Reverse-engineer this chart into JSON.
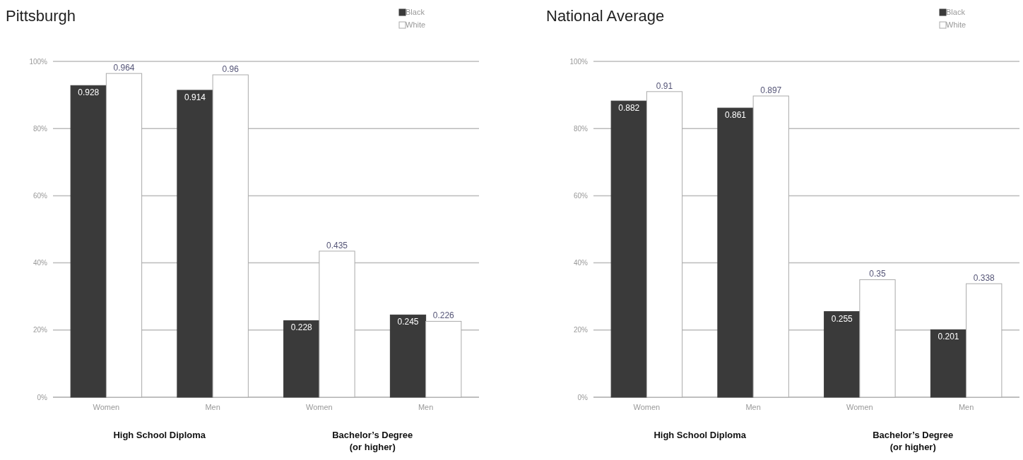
{
  "chart_data": [
    {
      "type": "bar",
      "title": "Pittsburgh",
      "categories": [
        "Women",
        "Men",
        "Women",
        "Men"
      ],
      "series": [
        {
          "name": "Black",
          "color": "#3a3a3a",
          "values": [
            0.928,
            0.914,
            0.228,
            0.245
          ]
        },
        {
          "name": "White",
          "color": "#ffffff",
          "values": [
            0.964,
            0.96,
            0.435,
            0.226
          ]
        }
      ],
      "ylim": [
        0,
        1
      ],
      "yticks": [
        {
          "value": 0,
          "label": "0%"
        },
        {
          "value": 0.2,
          "label": "20%"
        },
        {
          "value": 0.4,
          "label": "40%"
        },
        {
          "value": 0.6,
          "label": "60%"
        },
        {
          "value": 0.8,
          "label": "80%"
        },
        {
          "value": 1,
          "label": "100%"
        }
      ],
      "grid": "y",
      "legend": "top right",
      "data_labels": true,
      "annotations": [
        "High School Diploma",
        "Bachelor’s Degree (or higher)"
      ]
    },
    {
      "type": "bar",
      "title": "National Average",
      "categories": [
        "Women",
        "Men",
        "Women",
        "Men"
      ],
      "series": [
        {
          "name": "Black",
          "color": "#3a3a3a",
          "values": [
            0.882,
            0.861,
            0.255,
            0.201
          ]
        },
        {
          "name": "White",
          "color": "#ffffff",
          "values": [
            0.91,
            0.897,
            0.35,
            0.338
          ]
        }
      ],
      "ylim": [
        0,
        1
      ],
      "yticks": [
        {
          "value": 0,
          "label": "0%"
        },
        {
          "value": 0.2,
          "label": "20%"
        },
        {
          "value": 0.4,
          "label": "40%"
        },
        {
          "value": 0.6,
          "label": "60%"
        },
        {
          "value": 0.8,
          "label": "80%"
        },
        {
          "value": 1,
          "label": "100%"
        }
      ],
      "grid": "y",
      "legend": "top right",
      "data_labels": true,
      "annotations": [
        "High School Diploma",
        "Bachelor’s Degree (or higher)"
      ]
    }
  ]
}
